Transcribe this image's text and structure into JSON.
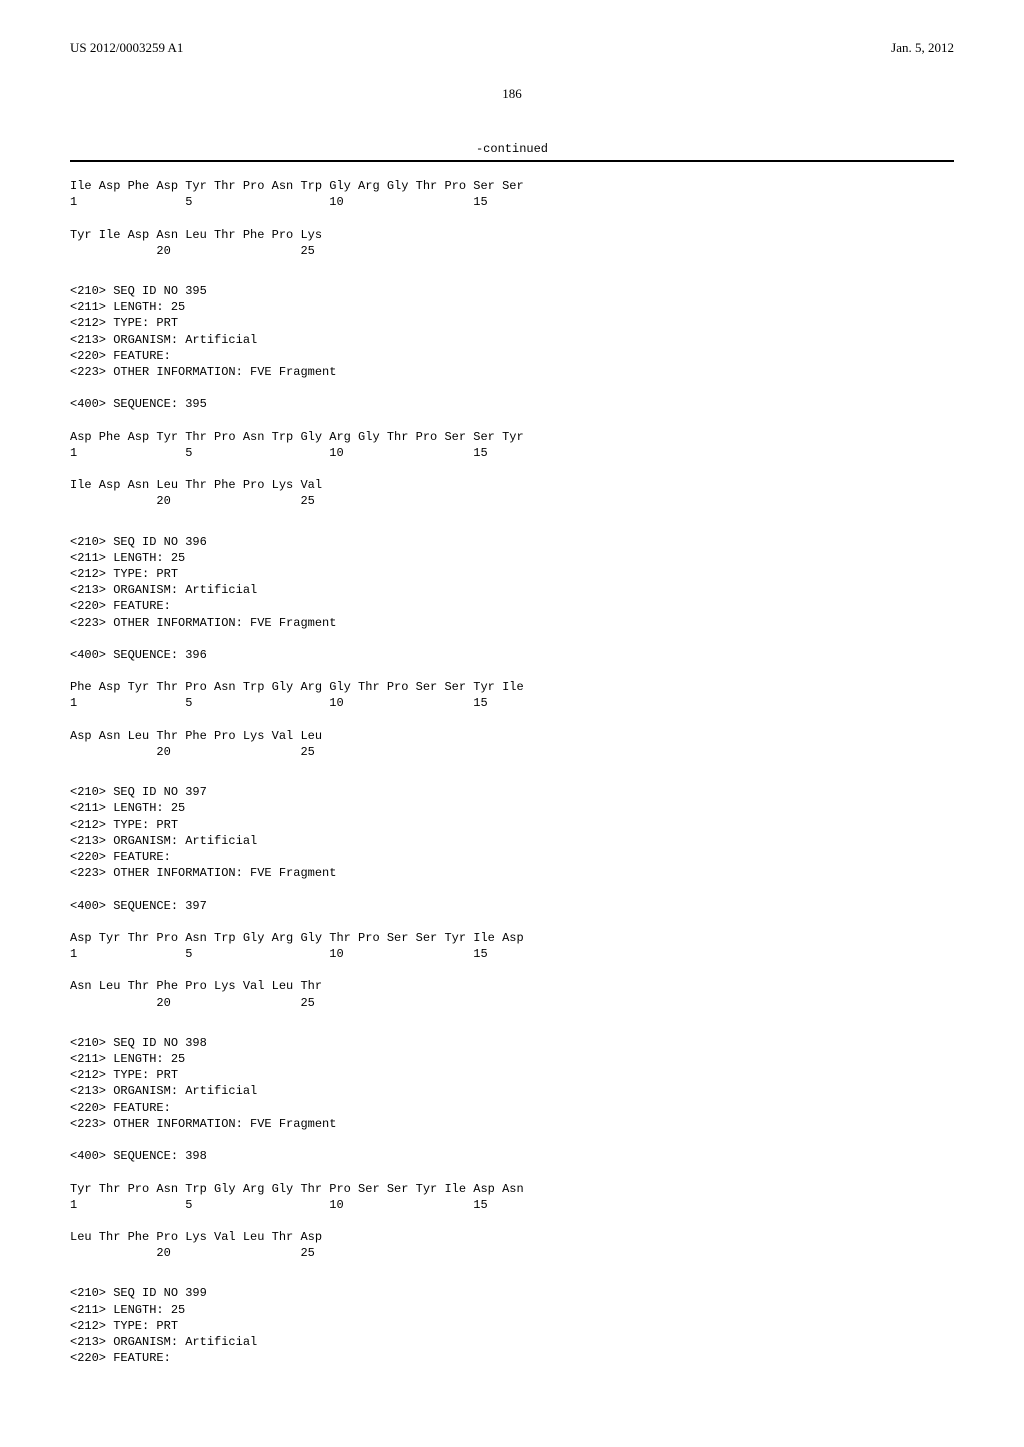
{
  "header": {
    "app_number": "US 2012/0003259 A1",
    "pub_date": "Jan. 5, 2012"
  },
  "page_number": "186",
  "continued_label": "-continued",
  "sequences": [
    {
      "line1": "Ile Asp Phe Asp Tyr Thr Pro Asn Trp Gly Arg Gly Thr Pro Ser Ser",
      "nums1": "1               5                   10                  15",
      "line2": "Tyr Ile Asp Asn Leu Thr Phe Pro Lys",
      "nums2": "            20                  25"
    },
    {
      "meta": [
        "<210> SEQ ID NO 395",
        "<211> LENGTH: 25",
        "<212> TYPE: PRT",
        "<213> ORGANISM: Artificial",
        "<220> FEATURE:",
        "<223> OTHER INFORMATION: FVE Fragment"
      ],
      "seq_label": "<400> SEQUENCE: 395",
      "line1": "Asp Phe Asp Tyr Thr Pro Asn Trp Gly Arg Gly Thr Pro Ser Ser Tyr",
      "nums1": "1               5                   10                  15",
      "line2": "Ile Asp Asn Leu Thr Phe Pro Lys Val",
      "nums2": "            20                  25"
    },
    {
      "meta": [
        "<210> SEQ ID NO 396",
        "<211> LENGTH: 25",
        "<212> TYPE: PRT",
        "<213> ORGANISM: Artificial",
        "<220> FEATURE:",
        "<223> OTHER INFORMATION: FVE Fragment"
      ],
      "seq_label": "<400> SEQUENCE: 396",
      "line1": "Phe Asp Tyr Thr Pro Asn Trp Gly Arg Gly Thr Pro Ser Ser Tyr Ile",
      "nums1": "1               5                   10                  15",
      "line2": "Asp Asn Leu Thr Phe Pro Lys Val Leu",
      "nums2": "            20                  25"
    },
    {
      "meta": [
        "<210> SEQ ID NO 397",
        "<211> LENGTH: 25",
        "<212> TYPE: PRT",
        "<213> ORGANISM: Artificial",
        "<220> FEATURE:",
        "<223> OTHER INFORMATION: FVE Fragment"
      ],
      "seq_label": "<400> SEQUENCE: 397",
      "line1": "Asp Tyr Thr Pro Asn Trp Gly Arg Gly Thr Pro Ser Ser Tyr Ile Asp",
      "nums1": "1               5                   10                  15",
      "line2": "Asn Leu Thr Phe Pro Lys Val Leu Thr",
      "nums2": "            20                  25"
    },
    {
      "meta": [
        "<210> SEQ ID NO 398",
        "<211> LENGTH: 25",
        "<212> TYPE: PRT",
        "<213> ORGANISM: Artificial",
        "<220> FEATURE:",
        "<223> OTHER INFORMATION: FVE Fragment"
      ],
      "seq_label": "<400> SEQUENCE: 398",
      "line1": "Tyr Thr Pro Asn Trp Gly Arg Gly Thr Pro Ser Ser Tyr Ile Asp Asn",
      "nums1": "1               5                   10                  15",
      "line2": "Leu Thr Phe Pro Lys Val Leu Thr Asp",
      "nums2": "            20                  25"
    },
    {
      "meta": [
        "<210> SEQ ID NO 399",
        "<211> LENGTH: 25",
        "<212> TYPE: PRT",
        "<213> ORGANISM: Artificial",
        "<220> FEATURE:"
      ]
    }
  ]
}
